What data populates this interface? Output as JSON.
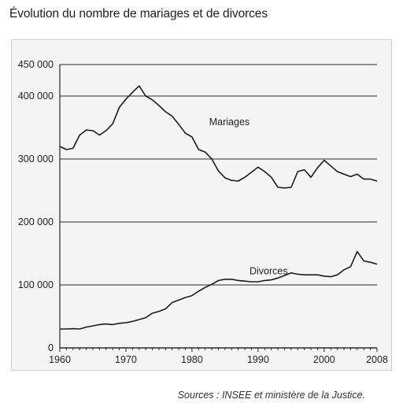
{
  "title": "Évolution du nombre de mariages et de divorces",
  "source": "Sources : INSEE et ministère de la Justice.",
  "chart_data": {
    "type": "line",
    "title": "Évolution du nombre de mariages et de divorces",
    "xlabel": "",
    "ylabel": "",
    "xlim": [
      1960,
      2008
    ],
    "ylim": [
      0,
      450000
    ],
    "grid": "horizontal",
    "x_ticks": [
      "1960",
      "1970",
      "1980",
      "1990",
      "2000",
      "2008"
    ],
    "x_tick_values": [
      1960,
      1970,
      1980,
      1990,
      2000,
      2008
    ],
    "y_ticks": [
      "0",
      "100 000",
      "200 000",
      "300 000",
      "400 000",
      "450 000"
    ],
    "y_tick_values": [
      0,
      100000,
      200000,
      300000,
      400000,
      450000
    ],
    "line_color": "#1a1a1a",
    "grid_color": "#2a2a2a",
    "series": [
      {
        "name": "Mariages",
        "x": [
          1960,
          1961,
          1962,
          1963,
          1964,
          1965,
          1966,
          1967,
          1968,
          1969,
          1970,
          1971,
          1972,
          1973,
          1974,
          1975,
          1976,
          1977,
          1978,
          1979,
          1980,
          1981,
          1982,
          1983,
          1984,
          1985,
          1986,
          1987,
          1988,
          1989,
          1990,
          1991,
          1992,
          1993,
          1994,
          1995,
          1996,
          1997,
          1998,
          1999,
          2000,
          2001,
          2002,
          2003,
          2004,
          2005,
          2006,
          2007,
          2008
        ],
        "values": [
          320000,
          315000,
          317000,
          338000,
          346000,
          345000,
          338000,
          345000,
          356000,
          382000,
          395000,
          406000,
          416000,
          400000,
          394000,
          385000,
          375000,
          368000,
          355000,
          341000,
          335000,
          315000,
          311000,
          300000,
          281000,
          270000,
          266000,
          265000,
          271000,
          279000,
          287000,
          280000,
          271000,
          255000,
          254000,
          255000,
          280000,
          283000,
          271000,
          286000,
          298000,
          289000,
          280000,
          276000,
          272000,
          276000,
          268000,
          268000,
          265000
        ]
      },
      {
        "name": "Divorces",
        "x": [
          1960,
          1961,
          1962,
          1963,
          1964,
          1965,
          1966,
          1967,
          1968,
          1969,
          1970,
          1971,
          1972,
          1973,
          1974,
          1975,
          1976,
          1977,
          1978,
          1979,
          1980,
          1981,
          1982,
          1983,
          1984,
          1985,
          1986,
          1987,
          1988,
          1989,
          1990,
          1991,
          1992,
          1993,
          1994,
          1995,
          1996,
          1997,
          1998,
          1999,
          2000,
          2001,
          2002,
          2003,
          2004,
          2005,
          2006,
          2007,
          2008
        ],
        "values": [
          30000,
          30000,
          30500,
          30000,
          33000,
          35000,
          37000,
          38000,
          37000,
          39000,
          40000,
          42000,
          45000,
          48000,
          55000,
          58000,
          62000,
          72000,
          76000,
          80000,
          83000,
          90000,
          96000,
          101000,
          107000,
          109000,
          109000,
          107000,
          106000,
          105000,
          105000,
          107000,
          108000,
          111000,
          115000,
          119000,
          117000,
          116000,
          116000,
          116000,
          114000,
          113000,
          116000,
          124000,
          129000,
          153000,
          138000,
          136000,
          133000
        ]
      }
    ],
    "annotations": [
      {
        "text": "Mariages",
        "x": 1982.6,
        "y": 354000
      },
      {
        "text": "Divorces",
        "x": 1988.7,
        "y": 117000
      }
    ]
  }
}
